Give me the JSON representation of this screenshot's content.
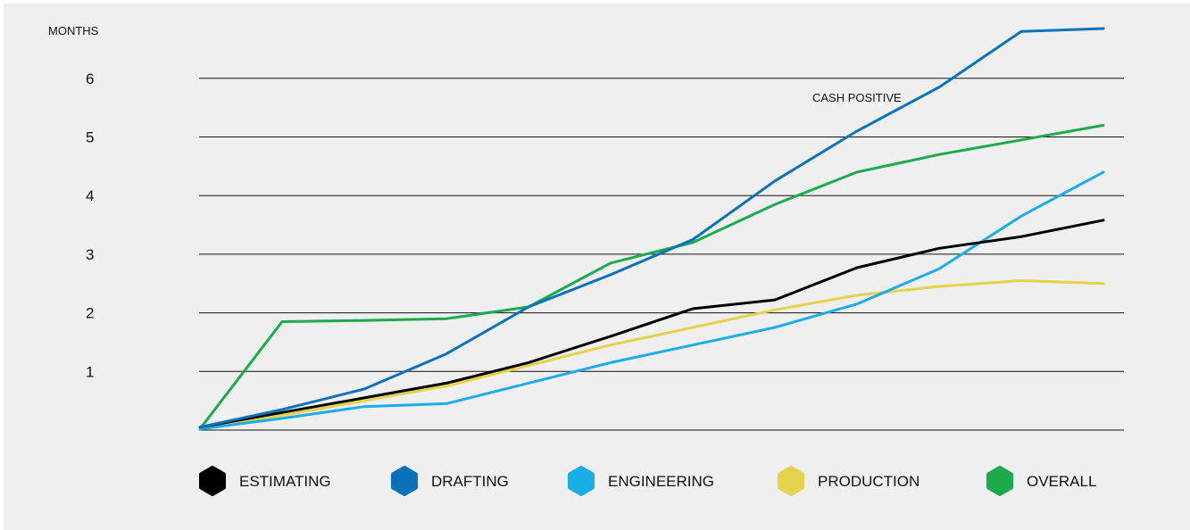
{
  "chart_data": {
    "type": "line",
    "y_unit_label": "MONTHS",
    "y_ticks": [
      "1",
      "2",
      "3",
      "4",
      "5",
      "6"
    ],
    "annotation": "CASH POSITIVE",
    "grid": true,
    "legend_position": "bottom",
    "x": [
      0,
      1,
      2,
      3,
      4,
      5,
      6,
      7,
      8,
      9,
      10,
      11
    ],
    "series": [
      {
        "name": "ESTIMATING",
        "color": "#000000",
        "values": [
          0.05,
          0.3,
          0.55,
          0.8,
          1.15,
          1.6,
          2.07,
          2.22,
          2.77,
          3.1,
          3.3,
          3.58
        ]
      },
      {
        "name": "DRAFTING",
        "color": "#0a72ba",
        "values": [
          0.05,
          0.35,
          0.7,
          1.3,
          2.1,
          2.65,
          3.25,
          4.25,
          5.1,
          5.85,
          6.8,
          6.85
        ]
      },
      {
        "name": "ENGINEERING",
        "color": "#1aaee8",
        "values": [
          0.02,
          0.2,
          0.4,
          0.45,
          0.8,
          1.15,
          1.45,
          1.75,
          2.15,
          2.75,
          3.65,
          4.4
        ]
      },
      {
        "name": "PRODUCTION",
        "color": "#e3d24a",
        "values": [
          0.02,
          0.25,
          0.5,
          0.75,
          1.1,
          1.45,
          1.75,
          2.05,
          2.3,
          2.45,
          2.55,
          2.5
        ]
      },
      {
        "name": "OVERALL",
        "color": "#1aab4b",
        "values": [
          0.02,
          1.85,
          1.87,
          1.9,
          2.1,
          2.85,
          3.2,
          3.85,
          4.4,
          4.7,
          4.95,
          5.2
        ]
      }
    ]
  }
}
